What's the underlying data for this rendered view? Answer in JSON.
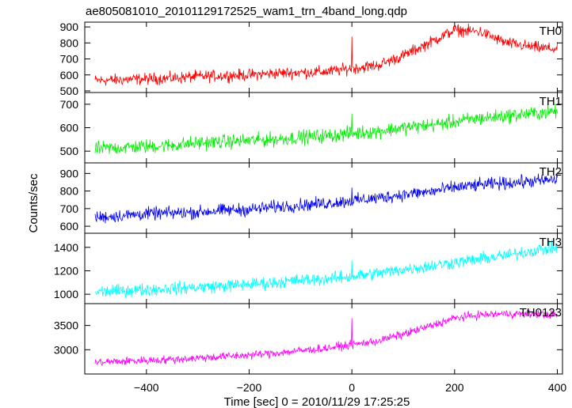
{
  "chart_data": {
    "type": "line",
    "title": "ae805081010_20101129172525_wam1_trn_4band_long.qdp",
    "xlabel": "Time [sec] 0 = 2010/11/29 17:25:25",
    "ylabel": "Counts/sec",
    "xlim": [
      -520,
      410
    ],
    "xticks": [
      -400,
      -200,
      0,
      200,
      400
    ],
    "grid": false,
    "line_color_note": "each panel drawn in its series color",
    "panels": [
      {
        "name": "TH0",
        "color": "#ff0000",
        "ylim": [
          490,
          930
        ],
        "yticks": [
          500,
          600,
          700,
          800,
          900
        ],
        "x": [
          -500,
          -450,
          -400,
          -350,
          -300,
          -250,
          -200,
          -150,
          -100,
          -50,
          0,
          50,
          100,
          150,
          200,
          250,
          300,
          350,
          400
        ],
        "values": [
          565,
          570,
          575,
          580,
          590,
          595,
          600,
          610,
          615,
          620,
          640,
          660,
          720,
          800,
          880,
          870,
          800,
          775,
          760
        ],
        "noise": 30,
        "spike": {
          "x": 0,
          "value": 840
        }
      },
      {
        "name": "TH1",
        "color": "#00ee00",
        "ylim": [
          450,
          750
        ],
        "yticks": [
          500,
          600,
          700
        ],
        "x": [
          -500,
          -450,
          -400,
          -350,
          -300,
          -250,
          -200,
          -150,
          -100,
          -50,
          0,
          50,
          100,
          150,
          200,
          250,
          300,
          350,
          400
        ],
        "values": [
          510,
          515,
          520,
          525,
          535,
          540,
          545,
          550,
          560,
          565,
          575,
          585,
          600,
          610,
          625,
          640,
          650,
          660,
          670
        ],
        "noise": 25,
        "spike": {
          "x": 0,
          "value": 660
        }
      },
      {
        "name": "TH2",
        "color": "#0000ee",
        "ylim": [
          560,
          960
        ],
        "yticks": [
          600,
          700,
          800,
          900
        ],
        "x": [
          -500,
          -450,
          -400,
          -350,
          -300,
          -250,
          -200,
          -150,
          -100,
          -50,
          0,
          50,
          100,
          150,
          200,
          250,
          300,
          350,
          400
        ],
        "values": [
          650,
          660,
          670,
          675,
          680,
          690,
          695,
          710,
          720,
          730,
          745,
          760,
          780,
          795,
          820,
          835,
          845,
          855,
          865
        ],
        "noise": 30,
        "spike": {
          "x": 0,
          "value": 820
        }
      },
      {
        "name": "TH3",
        "color": "#00ffff",
        "ylim": [
          920,
          1520
        ],
        "yticks": [
          1000,
          1200,
          1400
        ],
        "x": [
          -500,
          -450,
          -400,
          -350,
          -300,
          -250,
          -200,
          -150,
          -100,
          -50,
          0,
          50,
          100,
          150,
          200,
          250,
          300,
          350,
          400
        ],
        "values": [
          1020,
          1030,
          1040,
          1050,
          1060,
          1070,
          1085,
          1100,
          1120,
          1130,
          1150,
          1180,
          1210,
          1240,
          1270,
          1300,
          1330,
          1370,
          1400
        ],
        "noise": 45,
        "spike": {
          "x": 0,
          "value": 1290
        }
      },
      {
        "name": "TH0123",
        "color": "#ff00ff",
        "ylim": [
          2500,
          3950
        ],
        "yticks": [
          3000,
          3500
        ],
        "x": [
          -500,
          -450,
          -400,
          -350,
          -300,
          -250,
          -200,
          -150,
          -100,
          -50,
          0,
          50,
          100,
          150,
          200,
          250,
          300,
          350,
          400
        ],
        "values": [
          2740,
          2760,
          2780,
          2800,
          2830,
          2860,
          2890,
          2930,
          2980,
          3030,
          3100,
          3180,
          3320,
          3480,
          3650,
          3720,
          3740,
          3740,
          3720
        ],
        "noise": 70,
        "spike": {
          "x": 0,
          "value": 3650
        }
      }
    ]
  }
}
